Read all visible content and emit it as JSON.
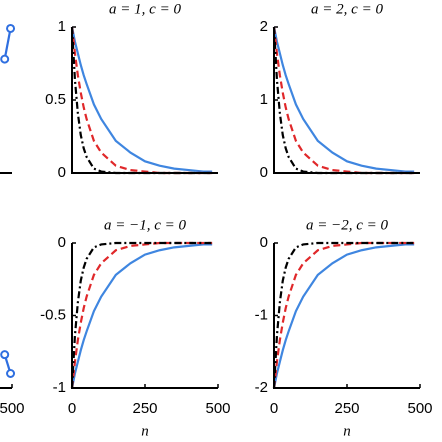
{
  "chart_data": [
    {
      "type": "line",
      "markers": true,
      "x": [
        475,
        495
      ],
      "xlim": [
        0,
        500
      ],
      "ylim": [
        0,
        1
      ],
      "yticks": [],
      "xticks": [],
      "series": [
        {
          "color": "#2f6fe0",
          "dash": "solid",
          "values": [
            0.78,
            0.99
          ]
        }
      ]
    },
    {
      "type": "line",
      "title": "a = 1, c = 0",
      "x": [
        0,
        10,
        20,
        30,
        40,
        50,
        75,
        100,
        150,
        200,
        250,
        300,
        350,
        400,
        450,
        480
      ],
      "xlim": [
        0,
        500
      ],
      "ylim": [
        0,
        1
      ],
      "yticks": [
        0,
        0.5,
        1
      ],
      "xticks": [],
      "series": [
        {
          "color": "#3f86e0",
          "dash": "solid",
          "values": [
            1,
            0.9,
            0.82,
            0.74,
            0.67,
            0.61,
            0.47,
            0.37,
            0.22,
            0.14,
            0.08,
            0.05,
            0.03,
            0.02,
            0.01,
            0.01
          ]
        },
        {
          "color": "#e0282a",
          "dash": "dashed",
          "values": [
            1,
            0.82,
            0.67,
            0.55,
            0.45,
            0.37,
            0.22,
            0.14,
            0.05,
            0.02,
            0.01,
            0,
            0,
            0,
            0,
            0
          ]
        },
        {
          "color": "#000000",
          "dash": "dashdot",
          "values": [
            1,
            0.64,
            0.41,
            0.26,
            0.17,
            0.11,
            0.03,
            0.01,
            0,
            0,
            0,
            0,
            0,
            0,
            0,
            0
          ]
        }
      ]
    },
    {
      "type": "line",
      "title": "a = 2, c = 0",
      "x": [
        0,
        10,
        20,
        30,
        40,
        50,
        75,
        100,
        150,
        200,
        250,
        300,
        350,
        400,
        450,
        480
      ],
      "xlim": [
        0,
        500
      ],
      "ylim": [
        0,
        2
      ],
      "yticks": [
        0,
        1,
        2
      ],
      "xticks": [],
      "series": [
        {
          "color": "#3f86e0",
          "dash": "solid",
          "values": [
            2,
            1.8,
            1.64,
            1.48,
            1.34,
            1.22,
            0.94,
            0.74,
            0.44,
            0.28,
            0.16,
            0.1,
            0.06,
            0.04,
            0.02,
            0.02
          ]
        },
        {
          "color": "#e0282a",
          "dash": "dashed",
          "values": [
            2,
            1.64,
            1.34,
            1.1,
            0.9,
            0.74,
            0.44,
            0.28,
            0.1,
            0.04,
            0.02,
            0,
            0,
            0,
            0,
            0
          ]
        },
        {
          "color": "#000000",
          "dash": "dashdot",
          "values": [
            2,
            1.28,
            0.82,
            0.52,
            0.34,
            0.22,
            0.06,
            0.02,
            0,
            0,
            0,
            0,
            0,
            0,
            0,
            0
          ]
        }
      ]
    },
    {
      "type": "line",
      "markers": true,
      "x": [
        475,
        495
      ],
      "xlim": [
        0,
        500
      ],
      "ylim": [
        -1,
        0
      ],
      "yticks": [],
      "xticks": [
        500
      ],
      "series": [
        {
          "color": "#2f6fe0",
          "dash": "solid",
          "values": [
            -0.77,
            -0.9
          ]
        }
      ]
    },
    {
      "type": "line",
      "title": "a = −1, c = 0",
      "xlabel": "n",
      "x": [
        0,
        10,
        20,
        30,
        40,
        50,
        75,
        100,
        150,
        200,
        250,
        300,
        350,
        400,
        450,
        480
      ],
      "xlim": [
        0,
        500
      ],
      "ylim": [
        -1,
        0
      ],
      "yticks": [
        0,
        -0.5,
        -1
      ],
      "xticks": [
        0,
        250,
        500
      ],
      "series": [
        {
          "color": "#3f86e0",
          "dash": "solid",
          "values": [
            -1,
            -0.9,
            -0.82,
            -0.74,
            -0.67,
            -0.61,
            -0.47,
            -0.37,
            -0.22,
            -0.14,
            -0.08,
            -0.05,
            -0.03,
            -0.02,
            -0.01,
            -0.01
          ]
        },
        {
          "color": "#e0282a",
          "dash": "dashed",
          "values": [
            -1,
            -0.82,
            -0.67,
            -0.55,
            -0.45,
            -0.37,
            -0.22,
            -0.14,
            -0.05,
            -0.02,
            -0.01,
            0,
            0,
            0,
            0,
            0
          ]
        },
        {
          "color": "#000000",
          "dash": "dashdot",
          "values": [
            -1,
            -0.64,
            -0.41,
            -0.26,
            -0.17,
            -0.11,
            -0.03,
            -0.01,
            0,
            0,
            0,
            0,
            0,
            0,
            0,
            0
          ]
        }
      ]
    },
    {
      "type": "line",
      "title": "a = −2, c = 0",
      "xlabel": "n",
      "x": [
        0,
        10,
        20,
        30,
        40,
        50,
        75,
        100,
        150,
        200,
        250,
        300,
        350,
        400,
        450,
        480
      ],
      "xlim": [
        0,
        500
      ],
      "ylim": [
        -2,
        0
      ],
      "yticks": [
        0,
        -1,
        -2
      ],
      "xticks": [
        0,
        250,
        500
      ],
      "series": [
        {
          "color": "#3f86e0",
          "dash": "solid",
          "values": [
            -2,
            -1.8,
            -1.64,
            -1.48,
            -1.34,
            -1.22,
            -0.94,
            -0.74,
            -0.44,
            -0.28,
            -0.16,
            -0.1,
            -0.06,
            -0.04,
            -0.02,
            -0.02
          ]
        },
        {
          "color": "#e0282a",
          "dash": "dashed",
          "values": [
            -2,
            -1.64,
            -1.34,
            -1.1,
            -0.9,
            -0.74,
            -0.44,
            -0.28,
            -0.1,
            -0.04,
            -0.02,
            0,
            0,
            0,
            0,
            0
          ]
        },
        {
          "color": "#000000",
          "dash": "dashdot",
          "values": [
            -2,
            -1.28,
            -0.82,
            -0.52,
            -0.34,
            -0.22,
            -0.06,
            -0.02,
            0,
            0,
            0,
            0,
            0,
            0,
            0,
            0
          ]
        }
      ]
    }
  ]
}
